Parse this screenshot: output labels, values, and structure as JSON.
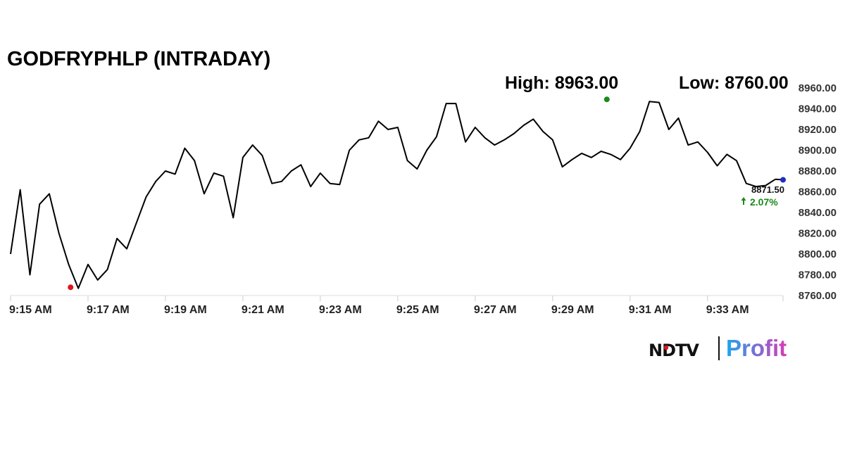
{
  "colors": {
    "line": "#000000",
    "high_marker": "#1a8a1a",
    "low_marker": "#e0151b",
    "last_marker": "#1f2fbf",
    "up_change": "#1a8a1a",
    "axis": "#dcdcdc",
    "logo_profit_start": "#1ba5ef",
    "logo_profit_end": "#d93ab8"
  },
  "icons": {
    "up_change": "arrow-up-icon"
  },
  "chart_data": {
    "type": "line",
    "title": "GODFRYPHLP (INTRADAY)",
    "high_label": "High: 8963.00",
    "low_label": "Low: 8760.00",
    "xlabel": "",
    "ylabel": "",
    "x_ticks": [
      "9:15 AM",
      "9:17 AM",
      "9:19 AM",
      "9:21 AM",
      "9:23 AM",
      "9:25 AM",
      "9:27 AM",
      "9:29 AM",
      "9:31 AM",
      "9:33 AM"
    ],
    "y_ticks": [
      "8760.00",
      "8780.00",
      "8800.00",
      "8820.00",
      "8840.00",
      "8860.00",
      "8880.00",
      "8900.00",
      "8920.00",
      "8940.00",
      "8960.00"
    ],
    "ylim": [
      8760,
      8960
    ],
    "xlim": [
      "9:15 AM",
      "9:34:50 AM"
    ],
    "grid": false,
    "series": [
      {
        "time_minutes_after_9_15": [
          0,
          0.25,
          0.5,
          0.75,
          1.0,
          1.25,
          1.5,
          1.75,
          2.0,
          2.25,
          2.5,
          2.75,
          3.0,
          3.25,
          3.5,
          3.75,
          4.0,
          4.25,
          4.5,
          4.75,
          5.0,
          5.25,
          5.5,
          5.75,
          6.0,
          6.25,
          6.5,
          6.75,
          7.0,
          7.25,
          7.5,
          7.75,
          8.0,
          8.25,
          8.5,
          8.75,
          9.0,
          9.25,
          9.5,
          9.75,
          10.0,
          10.25,
          10.5,
          10.75,
          11.0,
          11.25,
          11.5,
          11.75,
          12.0,
          12.25,
          12.5,
          12.75,
          13.0,
          13.25,
          13.5,
          13.75,
          14.0,
          14.25,
          14.5,
          14.75,
          15.0,
          15.25,
          15.5,
          15.75,
          16.0,
          16.25,
          16.5,
          16.75,
          17.0,
          17.25,
          17.5,
          17.75,
          18.0,
          18.25,
          18.5,
          18.75,
          19.0,
          19.25,
          19.5,
          19.75
        ],
        "price": [
          8800,
          8862,
          8780,
          8848,
          8858,
          8820,
          8790,
          8767,
          8790,
          8775,
          8785,
          8815,
          8805,
          8830,
          8855,
          8870,
          8880,
          8877,
          8902,
          8890,
          8858,
          8878,
          8875,
          8835,
          8893,
          8905,
          8895,
          8868,
          8870,
          8880,
          8886,
          8865,
          8878,
          8868,
          8867,
          8900,
          8910,
          8912,
          8928,
          8920,
          8922,
          8890,
          8882,
          8900,
          8913,
          8945,
          8945,
          8908,
          8922,
          8912,
          8905,
          8910,
          8916,
          8924,
          8930,
          8918,
          8910,
          8884,
          8891,
          8897,
          8893,
          8899,
          8896,
          8891,
          8902,
          8918,
          8947,
          8946,
          8920,
          8931,
          8905,
          8908,
          8898,
          8885,
          8896,
          8890,
          8868,
          8865,
          8866,
          8872
        ]
      }
    ],
    "low_point": {
      "time_minutes_after_9_15": 1.55,
      "price": 8768
    },
    "high_point": {
      "time_minutes_after_9_15": 15.4,
      "price": 8949
    },
    "last_point": {
      "time_minutes_after_9_15": 19.95,
      "price": 8871.5
    },
    "last_price_label": "8871.50",
    "change_label": "2.07%",
    "change_direction": "up"
  },
  "brand": {
    "logo_ndtv": "NDTV",
    "logo_profit": "Profit"
  }
}
